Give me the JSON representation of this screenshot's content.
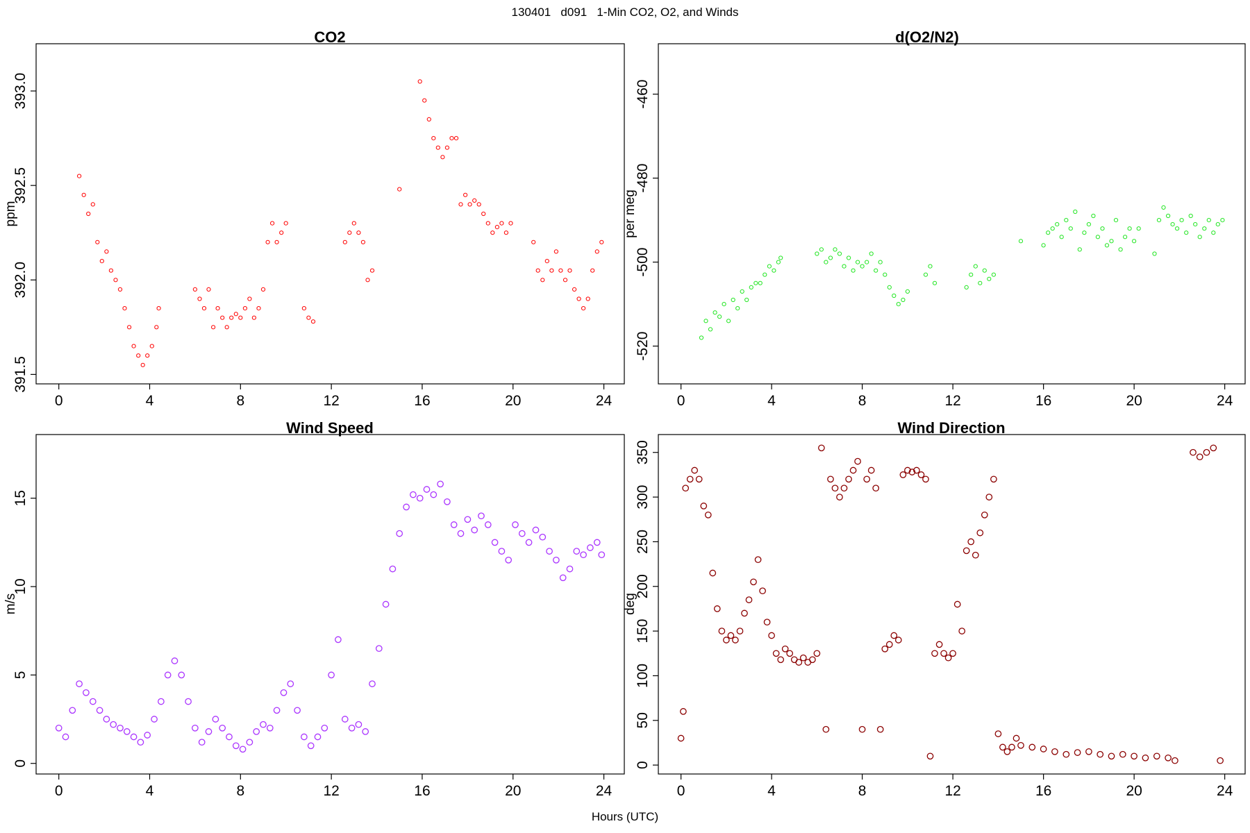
{
  "figure": {
    "suptitle": "130401   d091   1-Min CO2, O2, and Winds",
    "xlabel": "Hours (UTC)"
  },
  "chart_data": [
    {
      "id": "co2",
      "type": "scatter",
      "title": "CO2",
      "xlabel": "",
      "ylabel": "ppm",
      "xlim": [
        -1,
        24.9
      ],
      "ylim": [
        391.45,
        393.25
      ],
      "xticks": [
        0,
        4,
        8,
        12,
        16,
        20,
        24
      ],
      "yticks": [
        391.5,
        392.0,
        392.5,
        393.0
      ],
      "ytick_labels": [
        "391.5",
        "392.0",
        "392.5",
        "393.0"
      ],
      "color": "#ff0000",
      "x": [
        0.9,
        1.1,
        1.3,
        1.5,
        1.7,
        1.9,
        2.1,
        2.3,
        2.5,
        2.7,
        2.9,
        3.1,
        3.3,
        3.5,
        3.7,
        3.9,
        4.1,
        4.3,
        4.4,
        6.0,
        6.2,
        6.4,
        6.6,
        6.8,
        7.0,
        7.2,
        7.4,
        7.6,
        7.8,
        8.0,
        8.2,
        8.4,
        8.6,
        8.8,
        9.0,
        9.2,
        9.4,
        9.6,
        9.8,
        10.0,
        10.8,
        11.0,
        11.2,
        12.6,
        12.8,
        13.0,
        13.2,
        13.4,
        13.6,
        13.8,
        15.0,
        15.9,
        16.1,
        16.3,
        16.5,
        16.7,
        16.9,
        17.1,
        17.3,
        17.5,
        17.7,
        17.9,
        18.1,
        18.3,
        18.5,
        18.7,
        18.9,
        19.1,
        19.3,
        19.5,
        19.7,
        19.9,
        20.9,
        21.1,
        21.3,
        21.5,
        21.7,
        21.9,
        22.1,
        22.3,
        22.5,
        22.7,
        22.9,
        23.1,
        23.3,
        23.5,
        23.7,
        23.9
      ],
      "y": [
        392.55,
        392.45,
        392.35,
        392.4,
        392.2,
        392.1,
        392.15,
        392.05,
        392.0,
        391.95,
        391.85,
        391.75,
        391.65,
        391.6,
        391.55,
        391.6,
        391.65,
        391.75,
        391.85,
        391.95,
        391.9,
        391.85,
        391.95,
        391.75,
        391.85,
        391.8,
        391.75,
        391.8,
        391.82,
        391.8,
        391.85,
        391.9,
        391.8,
        391.85,
        391.95,
        392.2,
        392.3,
        392.2,
        392.25,
        392.3,
        391.85,
        391.8,
        391.78,
        392.2,
        392.25,
        392.3,
        392.25,
        392.2,
        392.0,
        392.05,
        392.48,
        393.05,
        392.95,
        392.85,
        392.75,
        392.7,
        392.65,
        392.7,
        392.75,
        392.75,
        392.4,
        392.45,
        392.4,
        392.42,
        392.4,
        392.35,
        392.3,
        392.25,
        392.28,
        392.3,
        392.25,
        392.3,
        392.2,
        392.05,
        392.0,
        392.1,
        392.05,
        392.15,
        392.05,
        392.0,
        392.05,
        391.95,
        391.9,
        391.85,
        391.9,
        392.05,
        392.15,
        392.2
      ]
    },
    {
      "id": "o2",
      "type": "scatter",
      "title": "d(O2/N2)",
      "xlabel": "",
      "ylabel": "per meg",
      "xlim": [
        -1,
        24.9
      ],
      "ylim": [
        -529,
        -448
      ],
      "xticks": [
        0,
        4,
        8,
        12,
        16,
        20,
        24
      ],
      "yticks": [
        -520,
        -500,
        -480,
        -460
      ],
      "ytick_labels": [
        "-520",
        "-500",
        "-480",
        "-460"
      ],
      "color": "#22e622",
      "x": [
        0.9,
        1.1,
        1.3,
        1.5,
        1.7,
        1.9,
        2.1,
        2.3,
        2.5,
        2.7,
        2.9,
        3.1,
        3.3,
        3.5,
        3.7,
        3.9,
        4.1,
        4.3,
        4.4,
        6.0,
        6.2,
        6.4,
        6.6,
        6.8,
        7.0,
        7.2,
        7.4,
        7.6,
        7.8,
        8.0,
        8.2,
        8.4,
        8.6,
        8.8,
        9.0,
        9.2,
        9.4,
        9.6,
        9.8,
        10.0,
        10.8,
        11.0,
        11.2,
        12.6,
        12.8,
        13.0,
        13.2,
        13.4,
        13.6,
        13.8,
        15.0,
        16.0,
        16.2,
        16.4,
        16.6,
        16.8,
        17.0,
        17.2,
        17.4,
        17.6,
        17.8,
        18.0,
        18.2,
        18.4,
        18.6,
        18.8,
        19.0,
        19.2,
        19.4,
        19.6,
        19.8,
        20.0,
        20.2,
        20.9,
        21.1,
        21.3,
        21.5,
        21.7,
        21.9,
        22.1,
        22.3,
        22.5,
        22.7,
        22.9,
        23.1,
        23.3,
        23.5,
        23.7,
        23.9
      ],
      "y": [
        -518,
        -514,
        -516,
        -512,
        -513,
        -510,
        -514,
        -509,
        -511,
        -507,
        -509,
        -506,
        -505,
        -505,
        -503,
        -501,
        -502,
        -500,
        -499,
        -498,
        -497,
        -500,
        -499,
        -497,
        -498,
        -501,
        -499,
        -502,
        -500,
        -501,
        -500,
        -498,
        -502,
        -500,
        -503,
        -506,
        -508,
        -510,
        -509,
        -507,
        -503,
        -501,
        -505,
        -506,
        -503,
        -501,
        -505,
        -502,
        -504,
        -503,
        -495,
        -496,
        -493,
        -492,
        -491,
        -494,
        -490,
        -492,
        -488,
        -497,
        -493,
        -491,
        -489,
        -494,
        -492,
        -496,
        -495,
        -490,
        -497,
        -494,
        -492,
        -495,
        -492,
        -498,
        -490,
        -487,
        -489,
        -491,
        -492,
        -490,
        -493,
        -489,
        -491,
        -494,
        -492,
        -490,
        -493,
        -491,
        -490
      ]
    },
    {
      "id": "wind-speed",
      "type": "scatter",
      "title": "Wind Speed",
      "xlabel": "",
      "ylabel": "m/s",
      "xlim": [
        -1,
        24.9
      ],
      "ylim": [
        -0.6,
        18.6
      ],
      "xticks": [
        0,
        4,
        8,
        12,
        16,
        20,
        24
      ],
      "yticks": [
        0,
        5,
        10,
        15
      ],
      "ytick_labels": [
        "0",
        "5",
        "10",
        "15"
      ],
      "color": "#aa33ff",
      "x": [
        0.0,
        0.3,
        0.6,
        0.9,
        1.2,
        1.5,
        1.8,
        2.1,
        2.4,
        2.7,
        3.0,
        3.3,
        3.6,
        3.9,
        4.2,
        4.5,
        4.8,
        5.1,
        5.4,
        5.7,
        6.0,
        6.3,
        6.6,
        6.9,
        7.2,
        7.5,
        7.8,
        8.1,
        8.4,
        8.7,
        9.0,
        9.3,
        9.6,
        9.9,
        10.2,
        10.5,
        10.8,
        11.1,
        11.4,
        11.7,
        12.0,
        12.3,
        12.6,
        12.9,
        13.2,
        13.5,
        13.8,
        14.1,
        14.4,
        14.7,
        15.0,
        15.3,
        15.6,
        15.9,
        16.2,
        16.5,
        16.8,
        17.1,
        17.4,
        17.7,
        18.0,
        18.3,
        18.6,
        18.9,
        19.2,
        19.5,
        19.8,
        20.1,
        20.4,
        20.7,
        21.0,
        21.3,
        21.6,
        21.9,
        22.2,
        22.5,
        22.8,
        23.1,
        23.4,
        23.7,
        23.9
      ],
      "y": [
        2.0,
        1.5,
        3.0,
        4.5,
        4.0,
        3.5,
        3.0,
        2.5,
        2.2,
        2.0,
        1.8,
        1.5,
        1.2,
        1.6,
        2.5,
        3.5,
        5.0,
        5.8,
        5.0,
        3.5,
        2.0,
        1.2,
        1.8,
        2.5,
        2.0,
        1.5,
        1.0,
        0.8,
        1.2,
        1.8,
        2.2,
        2.0,
        3.0,
        4.0,
        4.5,
        3.0,
        1.5,
        1.0,
        1.5,
        2.0,
        5.0,
        7.0,
        2.5,
        2.0,
        2.2,
        1.8,
        4.5,
        6.5,
        9.0,
        11.0,
        13.0,
        14.5,
        15.2,
        15.0,
        15.5,
        15.2,
        15.8,
        14.8,
        13.5,
        13.0,
        13.8,
        13.2,
        14.0,
        13.5,
        12.5,
        12.0,
        11.5,
        13.5,
        13.0,
        12.5,
        13.2,
        12.8,
        12.0,
        11.5,
        10.5,
        11.0,
        12.0,
        11.8,
        12.2,
        12.5,
        11.8
      ]
    },
    {
      "id": "wind-direction",
      "type": "scatter",
      "title": "Wind Direction",
      "xlabel": "",
      "ylabel": "deg",
      "xlim": [
        -1,
        24.9
      ],
      "ylim": [
        -10,
        370
      ],
      "xticks": [
        0,
        4,
        8,
        12,
        16,
        20,
        24
      ],
      "yticks": [
        0,
        50,
        100,
        150,
        200,
        250,
        300,
        350
      ],
      "ytick_labels": [
        "0",
        "50",
        "100",
        "150",
        "200",
        "250",
        "300",
        "350"
      ],
      "color": "#8b0000",
      "x": [
        0.0,
        0.1,
        0.2,
        0.4,
        0.6,
        0.8,
        1.0,
        1.2,
        1.4,
        1.6,
        1.8,
        2.0,
        2.2,
        2.4,
        2.6,
        2.8,
        3.0,
        3.2,
        3.4,
        3.6,
        3.8,
        4.0,
        4.2,
        4.4,
        4.6,
        4.8,
        5.0,
        5.2,
        5.4,
        5.6,
        5.8,
        6.0,
        6.2,
        6.4,
        6.6,
        6.8,
        7.0,
        7.2,
        7.4,
        7.6,
        7.8,
        8.0,
        8.2,
        8.4,
        8.6,
        8.8,
        9.0,
        9.2,
        9.4,
        9.6,
        9.8,
        10.0,
        10.2,
        10.4,
        10.6,
        10.8,
        11.0,
        11.2,
        11.4,
        11.6,
        11.8,
        12.0,
        12.2,
        12.4,
        12.6,
        12.8,
        13.0,
        13.2,
        13.4,
        13.6,
        13.8,
        14.0,
        14.2,
        14.4,
        14.6,
        14.8,
        15.0,
        15.5,
        16.0,
        16.5,
        17.0,
        17.5,
        18.0,
        18.5,
        19.0,
        19.5,
        20.0,
        20.5,
        21.0,
        21.5,
        21.8,
        22.6,
        22.9,
        23.2,
        23.5,
        23.8
      ],
      "y": [
        30,
        60,
        310,
        320,
        330,
        320,
        290,
        280,
        215,
        175,
        150,
        140,
        145,
        140,
        150,
        170,
        185,
        205,
        230,
        195,
        160,
        145,
        125,
        118,
        130,
        125,
        118,
        115,
        120,
        115,
        118,
        125,
        355,
        40,
        320,
        310,
        300,
        310,
        320,
        330,
        340,
        40,
        320,
        330,
        310,
        40,
        130,
        135,
        145,
        140,
        325,
        330,
        328,
        330,
        325,
        320,
        10,
        125,
        135,
        125,
        120,
        125,
        180,
        150,
        240,
        250,
        235,
        260,
        280,
        300,
        320,
        35,
        20,
        15,
        20,
        30,
        22,
        20,
        18,
        15,
        12,
        14,
        15,
        12,
        10,
        12,
        10,
        8,
        10,
        8,
        5,
        350,
        345,
        350,
        355,
        5
      ]
    }
  ]
}
